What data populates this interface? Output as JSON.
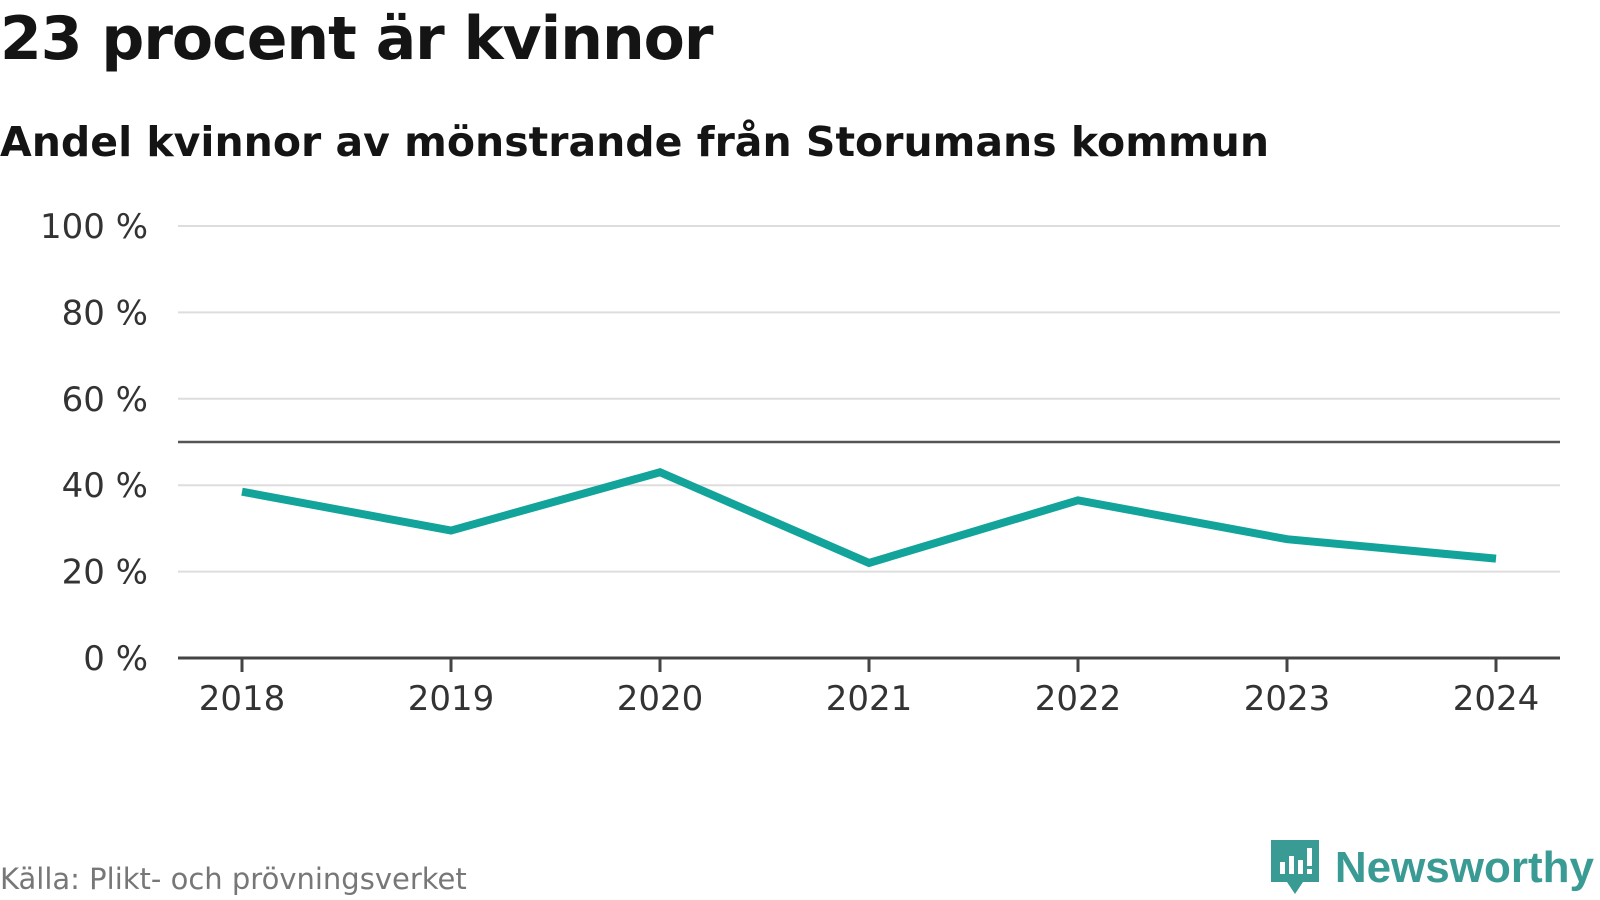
{
  "header": {
    "title": "23 procent är kvinnor",
    "subtitle": "Andel kvinnor av mönstrande från Storumans kommun"
  },
  "footer": {
    "source": "Källa: Plikt- och prövningsverket",
    "brand": "Newsworthy",
    "brand_icon": "newsworthy-logo-icon"
  },
  "colors": {
    "line": "#12a39a",
    "grid": "#dddddd",
    "axis": "#444444",
    "reference": "#555555",
    "brand": "#3a9a94"
  },
  "chart_data": {
    "type": "line",
    "title": "23 procent är kvinnor",
    "subtitle": "Andel kvinnor av mönstrande från Storumans kommun",
    "xlabel": "",
    "ylabel": "",
    "categories": [
      "2018",
      "2019",
      "2020",
      "2021",
      "2022",
      "2023",
      "2024"
    ],
    "series": [
      {
        "name": "Andel kvinnor",
        "values": [
          38.5,
          29.5,
          43,
          22,
          36.5,
          27.5,
          23
        ]
      }
    ],
    "reference_line": 50,
    "ylim": [
      0,
      100
    ],
    "yticks": [
      0,
      20,
      40,
      60,
      80,
      100
    ],
    "ytick_labels": [
      "0 %",
      "20 %",
      "40 %",
      "60 %",
      "80 %",
      "100 %"
    ],
    "grid": true
  }
}
